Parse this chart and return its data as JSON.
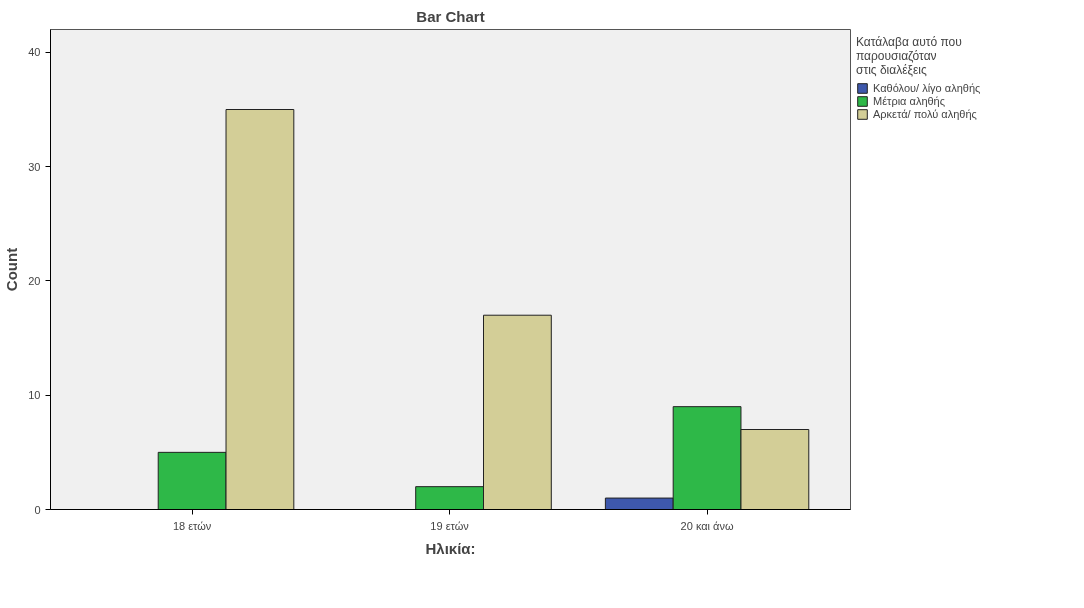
{
  "chart_data": {
    "type": "bar",
    "title": "Bar Chart",
    "xlabel": "Ηλικία:",
    "ylabel": "Count",
    "legend_title": "Κατάλαβα αυτό που παρουσιαζόταν στις διαλέξεις",
    "categories": [
      "18 ετών",
      "19 ετών",
      "20 και άνω"
    ],
    "series": [
      {
        "name": "Καθόλου/ λίγο αληθής",
        "color": "#3e58ac",
        "values": [
          null,
          null,
          1
        ]
      },
      {
        "name": "Μέτρια αληθής",
        "color": "#2eb848",
        "values": [
          5,
          2,
          9
        ]
      },
      {
        "name": "Αρκετά/ πολύ αληθής",
        "color": "#d3ce97",
        "values": [
          35,
          17,
          7
        ]
      }
    ],
    "ylim": [
      0,
      42
    ],
    "yticks": [
      0,
      10,
      20,
      30,
      40
    ],
    "grid": false,
    "legend": "top right"
  }
}
